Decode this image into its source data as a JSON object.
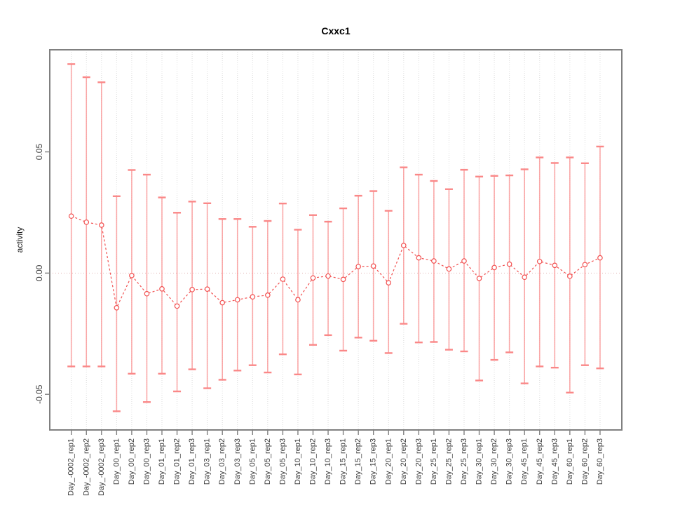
{
  "chart_data": {
    "type": "line",
    "title": "Cxxc1",
    "xlabel": "",
    "ylabel": "activity",
    "legend": "none",
    "grid": "vertical-dotted",
    "zero_reference_line": true,
    "ylim": [
      -0.0647,
      0.0921
    ],
    "yticks": {
      "values": [
        0.05,
        0.0,
        -0.05
      ],
      "labels": [
        "0.05",
        "0.00",
        "-0.05"
      ]
    },
    "categories": [
      "Day_-0002_rep1",
      "Day_-0002_rep2",
      "Day_-0002_rep3",
      "Day_00_rep1",
      "Day_00_rep2",
      "Day_00_rep3",
      "Day_01_rep1",
      "Day_01_rep2",
      "Day_01_rep3",
      "Day_03_rep1",
      "Day_03_rep2",
      "Day_03_rep3",
      "Day_05_rep1",
      "Day_05_rep2",
      "Day_05_rep3",
      "Day_10_rep1",
      "Day_10_rep2",
      "Day_10_rep3",
      "Day_15_rep1",
      "Day_15_rep2",
      "Day_15_rep3",
      "Day_20_rep1",
      "Day_20_rep2",
      "Day_20_rep3",
      "Day_25_rep1",
      "Day_25_rep2",
      "Day_25_rep3",
      "Day_30_rep1",
      "Day_30_rep2",
      "Day_30_rep3",
      "Day_45_rep1",
      "Day_45_rep2",
      "Day_45_rep3",
      "Day_60_rep1",
      "Day_60_rep2",
      "Day_60_rep3"
    ],
    "series": [
      {
        "name": "activity",
        "marker": "open-circle",
        "line_style": "dashed",
        "values": [
          0.0235,
          0.021,
          0.0198,
          -0.0143,
          -0.001,
          -0.0085,
          -0.0065,
          -0.0136,
          -0.0068,
          -0.0066,
          -0.0122,
          -0.011,
          -0.0098,
          -0.0091,
          -0.0025,
          -0.011,
          -0.002,
          -0.0012,
          -0.0026,
          0.0027,
          0.0029,
          -0.004,
          0.0114,
          0.0063,
          0.005,
          0.0017,
          0.005,
          -0.0022,
          0.0023,
          0.0037,
          -0.0017,
          0.0048,
          0.0032,
          -0.0013,
          0.0035,
          0.0063
        ],
        "error_high": [
          0.0862,
          0.0808,
          0.0787,
          0.0317,
          0.0425,
          0.0406,
          0.0312,
          0.0249,
          0.0295,
          0.0288,
          0.0223,
          0.0223,
          0.0191,
          0.0215,
          0.0287,
          0.0179,
          0.0239,
          0.0212,
          0.0267,
          0.0319,
          0.0338,
          0.0257,
          0.0436,
          0.0406,
          0.038,
          0.0346,
          0.0426,
          0.0398,
          0.0401,
          0.0403,
          0.0428,
          0.0477,
          0.0454,
          0.0477,
          0.0453,
          0.0522
        ],
        "error_low": [
          -0.0385,
          -0.0385,
          -0.0385,
          -0.057,
          -0.0415,
          -0.0532,
          -0.0415,
          -0.0488,
          -0.0397,
          -0.0475,
          -0.044,
          -0.0402,
          -0.038,
          -0.041,
          -0.0335,
          -0.0418,
          -0.0296,
          -0.0256,
          -0.032,
          -0.0266,
          -0.0279,
          -0.033,
          -0.0209,
          -0.0286,
          -0.0284,
          -0.0316,
          -0.0323,
          -0.0443,
          -0.0358,
          -0.0327,
          -0.0455,
          -0.0385,
          -0.039,
          -0.0493,
          -0.038,
          -0.0393
        ]
      }
    ],
    "colors": {
      "point": "#f25050",
      "series_line": "#f25050",
      "error_bar": "#fa9393",
      "error_cap": "#fa8888",
      "gridline": "#dcdcdc",
      "zero_line": "#e2b6b6",
      "plot_border": "#808080",
      "tick_mark": "#808080",
      "tick_label": "#3a3a3a",
      "title": "#000000"
    }
  }
}
